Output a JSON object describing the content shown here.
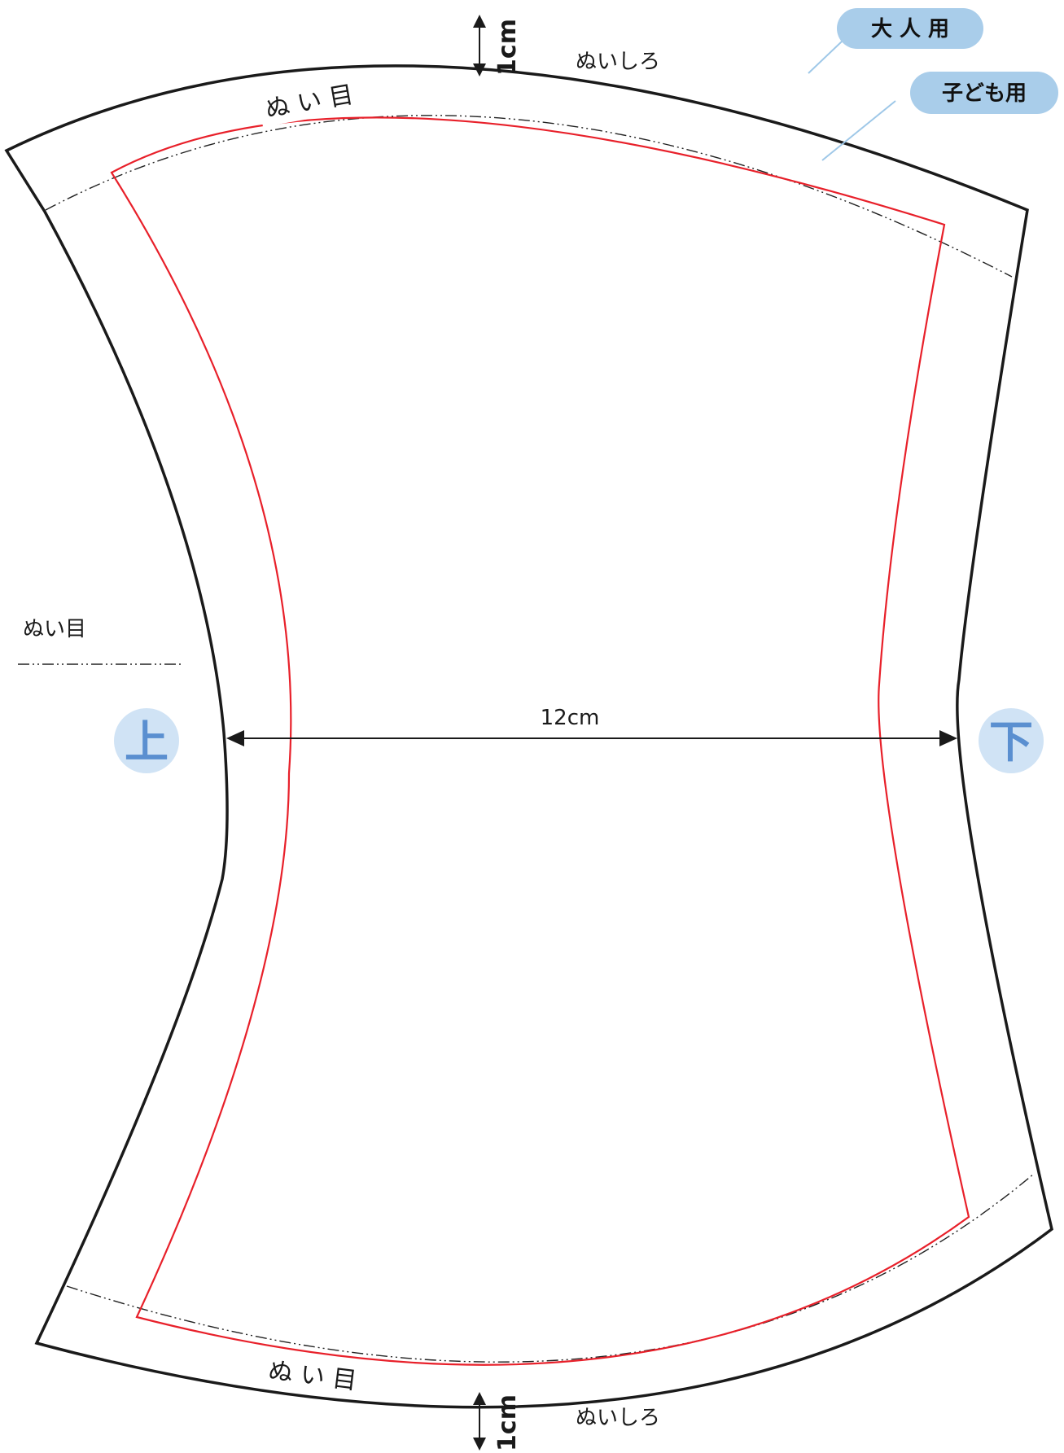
{
  "labels": {
    "seam_allowance_top": "ぬいしろ",
    "seam_allowance_bottom": "ぬいしろ",
    "seam_line_top": "ぬ い 目",
    "seam_line_bottom": "ぬ い 目",
    "legend_seam_line": "ぬい目",
    "allowance_top_measure": "1cm",
    "allowance_bottom_measure": "1cm",
    "width_measure": "12cm"
  },
  "badges": {
    "adult": "大 人 用",
    "child": "子ども用"
  },
  "side_markers": {
    "left": "上",
    "right": "下"
  },
  "colors": {
    "outline": "#1a1a1a",
    "child_line": "#e8202a",
    "badge_fill": "#a9cdea",
    "badge_line": "#9fc8e8",
    "marker_circle": "#d0e3f5",
    "marker_char": "#5a8fd0"
  }
}
